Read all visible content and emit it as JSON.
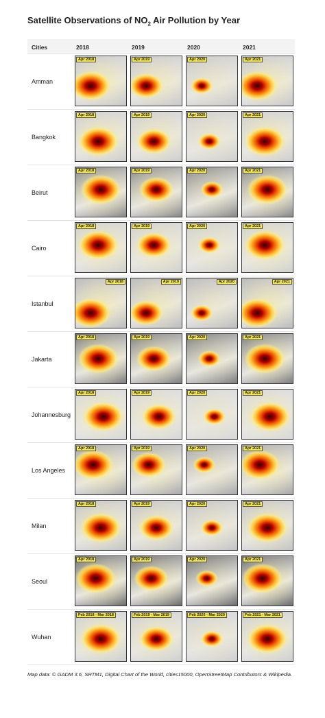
{
  "title": {
    "before": "Satellite Observations of NO",
    "subscript": "2",
    "after": " Air Pollution by Year"
  },
  "table": {
    "header": [
      "Cities",
      "2018",
      "2019",
      "2020",
      "2021"
    ],
    "rows": [
      {
        "city": "Amman",
        "labels": [
          "Apr 2018",
          "Apr 2019",
          "Apr 2020",
          "Apr 2021"
        ]
      },
      {
        "city": "Bangkok",
        "labels": [
          "Apr 2018",
          "Apr 2019",
          "Apr 2020",
          "Apr 2021"
        ]
      },
      {
        "city": "Beirut",
        "labels": [
          "Apr 2018",
          "Apr 2019",
          "Apr 2020",
          "Apr 2021"
        ]
      },
      {
        "city": "Cairo",
        "labels": [
          "Apr 2018",
          "Apr 2019",
          "Apr 2020",
          "Apr 2021"
        ]
      },
      {
        "city": "Istanbul",
        "labels": [
          "Apr 2018",
          "Apr 2019",
          "Apr 2020",
          "Apr 2021"
        ]
      },
      {
        "city": "Jakarta",
        "labels": [
          "Apr 2018",
          "Apr 2019",
          "Apr 2020",
          "Apr 2021"
        ]
      },
      {
        "city": "Johannesburg",
        "labels": [
          "Apr 2018",
          "Apr 2019",
          "Apr 2020",
          "Apr 2021"
        ]
      },
      {
        "city": "Los Angeles",
        "labels": [
          "Apr 2018",
          "Apr 2019",
          "Apr 2020",
          "Apr 2021"
        ]
      },
      {
        "city": "Milan",
        "labels": [
          "Apr 2018",
          "Apr 2019",
          "Apr 2020",
          "Apr 2021"
        ]
      },
      {
        "city": "Seoul",
        "labels": [
          "Apr 2018",
          "Apr 2019",
          "Apr 2020",
          "Apr 2021"
        ]
      },
      {
        "city": "Wuhan",
        "labels": [
          "Feb 2018 - Mar 2018",
          "Feb 2019 - Mar 2019",
          "Feb 2020 - Mar 2020",
          "Feb 2021 - Mar 2021"
        ]
      }
    ]
  },
  "footnote": "Map data: © GADM 3.6, SRTM1, Digital Chart of the World, cities15000, OpenStreetMap Contributors & Wikipedia."
}
